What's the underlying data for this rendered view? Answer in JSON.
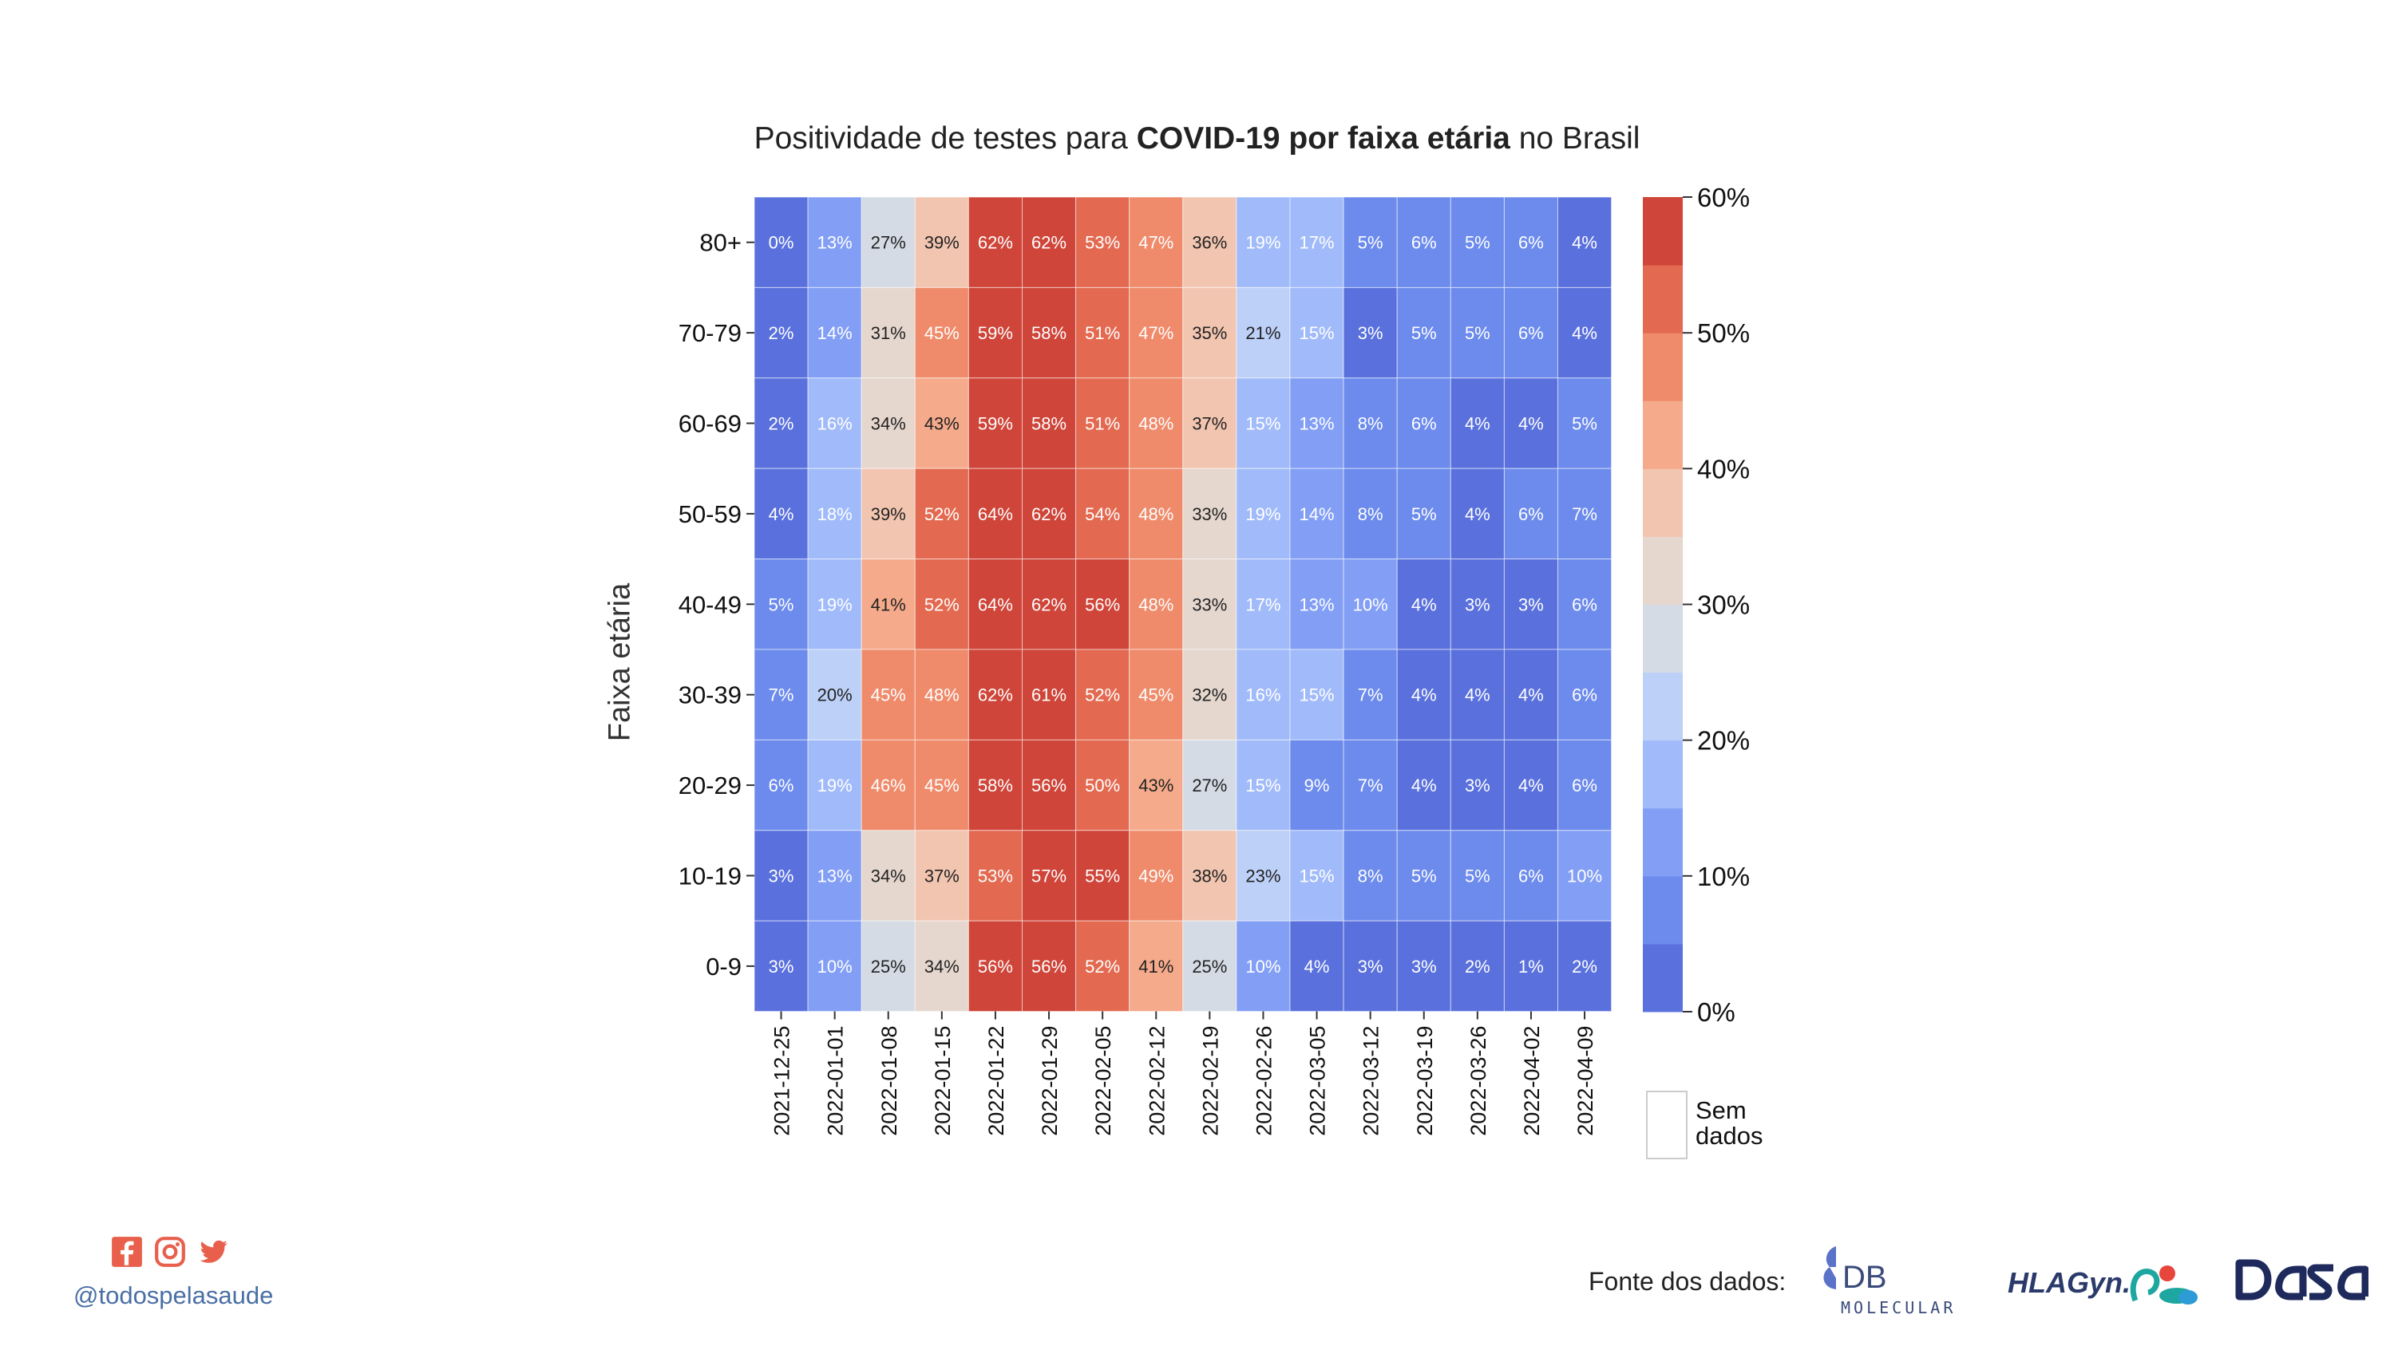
{
  "title_parts": {
    "pre": "Positividade de testes para ",
    "bold": "COVID-19 por faixa etária",
    "post": " no Brasil"
  },
  "footer": {
    "handle": "@todospelasaude",
    "sources_label": "Fonte dos dados:",
    "logos": {
      "db_main": "DB",
      "db_sub": "MOLECULAR",
      "hla": "HLAGyn.",
      "dasa": "DASA"
    },
    "social_icons": [
      "facebook-icon",
      "instagram-icon",
      "twitter-icon"
    ],
    "accent_color": "#e8604c"
  },
  "chart_data": {
    "type": "heatmap",
    "ylabel": "Faixa etária",
    "xlabel": "",
    "x": [
      "2021-12-25",
      "2022-01-01",
      "2022-01-08",
      "2022-01-15",
      "2022-01-22",
      "2022-01-29",
      "2022-02-05",
      "2022-02-12",
      "2022-02-19",
      "2022-02-26",
      "2022-03-05",
      "2022-03-12",
      "2022-03-19",
      "2022-03-26",
      "2022-04-02",
      "2022-04-09"
    ],
    "y": [
      "80+",
      "70-79",
      "60-69",
      "50-59",
      "40-49",
      "30-39",
      "20-29",
      "10-19",
      "0-9"
    ],
    "values": [
      [
        0,
        13,
        27,
        39,
        62,
        62,
        53,
        47,
        36,
        19,
        17,
        5,
        6,
        5,
        6,
        4
      ],
      [
        2,
        14,
        31,
        45,
        59,
        58,
        51,
        47,
        35,
        21,
        15,
        3,
        5,
        5,
        6,
        4
      ],
      [
        2,
        16,
        34,
        43,
        59,
        58,
        51,
        48,
        37,
        15,
        13,
        8,
        6,
        4,
        4,
        5
      ],
      [
        4,
        18,
        39,
        52,
        64,
        62,
        54,
        48,
        33,
        19,
        14,
        8,
        5,
        4,
        6,
        7
      ],
      [
        5,
        19,
        41,
        52,
        64,
        62,
        56,
        48,
        33,
        17,
        13,
        10,
        4,
        3,
        3,
        6
      ],
      [
        7,
        20,
        45,
        48,
        62,
        61,
        52,
        45,
        32,
        16,
        15,
        7,
        4,
        4,
        4,
        6
      ],
      [
        6,
        19,
        46,
        45,
        58,
        56,
        50,
        43,
        27,
        15,
        9,
        7,
        4,
        3,
        4,
        6
      ],
      [
        3,
        13,
        34,
        37,
        53,
        57,
        55,
        49,
        38,
        23,
        15,
        8,
        5,
        5,
        6,
        10
      ],
      [
        3,
        10,
        25,
        34,
        56,
        56,
        52,
        41,
        25,
        10,
        4,
        3,
        3,
        2,
        1,
        2
      ]
    ],
    "value_format": "percent",
    "colorbar": {
      "range": [
        0,
        60
      ],
      "ticks": [
        0,
        10,
        20,
        30,
        40,
        50,
        60
      ],
      "tick_labels": [
        "0%",
        "10%",
        "20%",
        "30%",
        "40%",
        "50%",
        "60%"
      ],
      "colors": [
        "#5a71dd",
        "#6c8bec",
        "#839ff5",
        "#a1bbfa",
        "#bdd0f7",
        "#d4dbe5",
        "#e5d7ce",
        "#f2c5b0",
        "#f5ab8b",
        "#ef8b6b",
        "#e36a51",
        "#cf4539"
      ],
      "missing_label_line1": "Sem",
      "missing_label_line2": "dados"
    },
    "grid": false,
    "legend": "right"
  }
}
